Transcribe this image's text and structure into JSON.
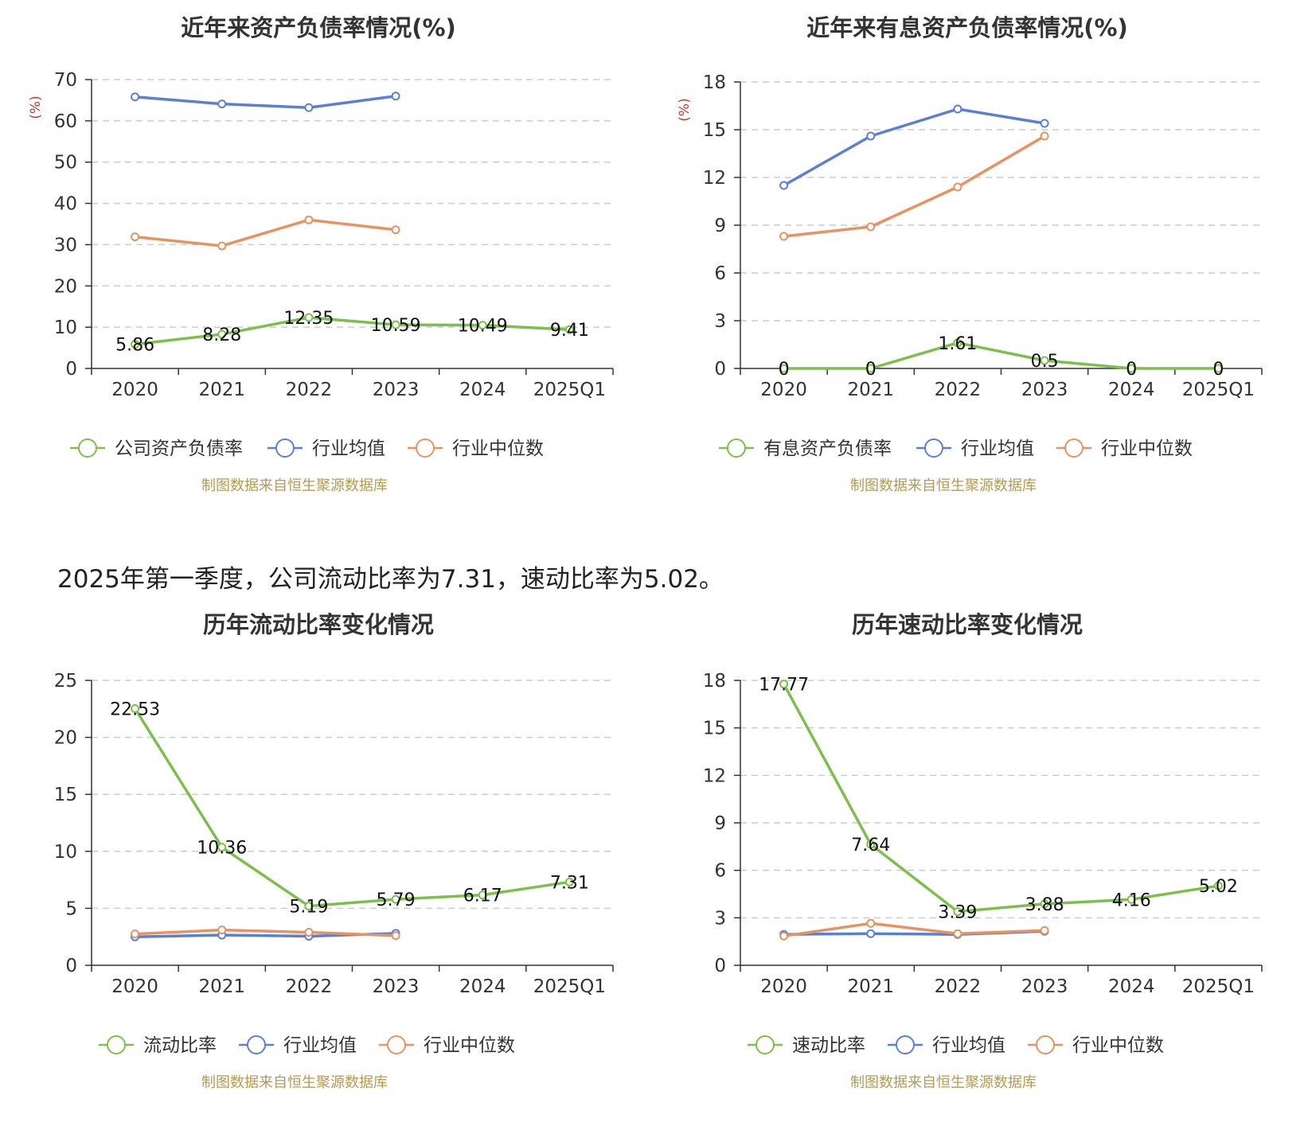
{
  "summary_text": "2025年第一季度，公司流动比率为7.31，速动比率为5.02。",
  "source_note": "制图数据来自恒生聚源数据库",
  "colors": {
    "company": "#7cbf4a",
    "industry_avg": "#5b7fd6",
    "industry_median": "#e8935f",
    "grid": "#cccccc",
    "axis": "#333333"
  },
  "chart_data": [
    {
      "type": "line",
      "title": "近年来资产负债率情况(%)",
      "ylabel": "(%)",
      "categories": [
        "2020",
        "2021",
        "2022",
        "2023",
        "2024",
        "2025Q1"
      ],
      "ylim": [
        0,
        70
      ],
      "yticks": [
        0,
        10,
        20,
        30,
        40,
        50,
        60,
        70
      ],
      "grid": true,
      "legend": "bottom",
      "series": [
        {
          "name": "公司资产负债率",
          "color": "company",
          "values": [
            5.86,
            8.28,
            12.35,
            10.59,
            10.49,
            9.41
          ],
          "labels": true
        },
        {
          "name": "行业均值",
          "color": "industry_avg",
          "values": [
            65.8,
            64.1,
            63.2,
            66.0,
            null,
            null
          ],
          "labels": false
        },
        {
          "name": "行业中位数",
          "color": "industry_median",
          "values": [
            31.9,
            29.7,
            36.0,
            33.6,
            null,
            null
          ],
          "labels": false
        }
      ]
    },
    {
      "type": "line",
      "title": "近年来有息资产负债率情况(%)",
      "ylabel": "(%)",
      "categories": [
        "2020",
        "2021",
        "2022",
        "2023",
        "2024",
        "2025Q1"
      ],
      "ylim": [
        0,
        18
      ],
      "yticks": [
        0,
        3,
        6,
        9,
        12,
        15,
        18
      ],
      "grid": true,
      "legend": "bottom",
      "series": [
        {
          "name": "有息资产负债率",
          "color": "company",
          "values": [
            0,
            0,
            1.61,
            0.5,
            0,
            0
          ],
          "labels": true
        },
        {
          "name": "行业均值",
          "color": "industry_avg",
          "values": [
            11.5,
            14.6,
            16.3,
            15.4,
            null,
            null
          ],
          "labels": false
        },
        {
          "name": "行业中位数",
          "color": "industry_median",
          "values": [
            8.3,
            8.9,
            11.4,
            14.6,
            null,
            null
          ],
          "labels": false
        }
      ]
    },
    {
      "type": "line",
      "title": "历年流动比率变化情况",
      "ylabel": "",
      "categories": [
        "2020",
        "2021",
        "2022",
        "2023",
        "2024",
        "2025Q1"
      ],
      "ylim": [
        0,
        25
      ],
      "yticks": [
        0,
        5,
        10,
        15,
        20,
        25
      ],
      "grid": true,
      "legend": "bottom",
      "series": [
        {
          "name": "流动比率",
          "color": "company",
          "values": [
            22.53,
            10.36,
            5.19,
            5.79,
            6.17,
            7.31
          ],
          "labels": true
        },
        {
          "name": "行业均值",
          "color": "industry_avg",
          "values": [
            2.5,
            2.65,
            2.55,
            2.8,
            null,
            null
          ],
          "labels": false
        },
        {
          "name": "行业中位数",
          "color": "industry_median",
          "values": [
            2.75,
            3.1,
            2.9,
            2.6,
            null,
            null
          ],
          "labels": false
        }
      ]
    },
    {
      "type": "line",
      "title": "历年速动比率变化情况",
      "ylabel": "",
      "categories": [
        "2020",
        "2021",
        "2022",
        "2023",
        "2024",
        "2025Q1"
      ],
      "ylim": [
        0,
        18
      ],
      "yticks": [
        0,
        3,
        6,
        9,
        12,
        15,
        18
      ],
      "grid": true,
      "legend": "bottom",
      "series": [
        {
          "name": "速动比率",
          "color": "company",
          "values": [
            17.77,
            7.64,
            3.39,
            3.88,
            4.16,
            5.02
          ],
          "labels": true
        },
        {
          "name": "行业均值",
          "color": "industry_avg",
          "values": [
            1.95,
            2.0,
            1.95,
            2.15,
            null,
            null
          ],
          "labels": false
        },
        {
          "name": "行业中位数",
          "color": "industry_median",
          "values": [
            1.85,
            2.65,
            2.0,
            2.2,
            null,
            null
          ],
          "labels": false
        }
      ]
    }
  ]
}
